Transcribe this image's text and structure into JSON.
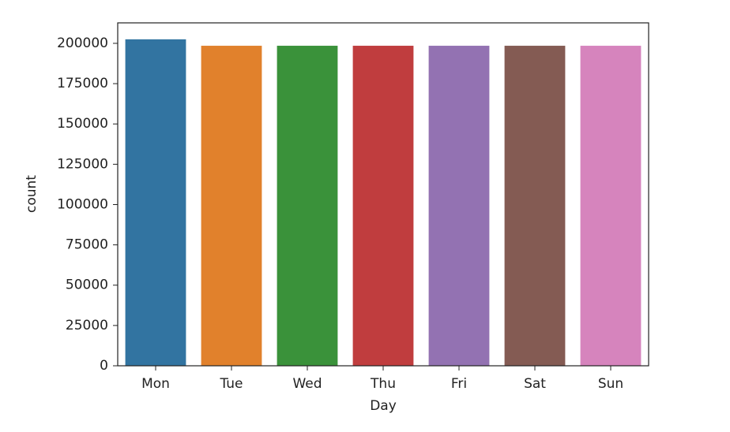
{
  "chart_data": {
    "type": "bar",
    "x_label": "Day",
    "y_label": "count",
    "categories": [
      "Mon",
      "Tue",
      "Wed",
      "Thu",
      "Fri",
      "Sat",
      "Sun"
    ],
    "values": [
      202500,
      198500,
      198500,
      198500,
      198500,
      198500,
      198500
    ],
    "colors": [
      "#3274a1",
      "#e1812c",
      "#3a923a",
      "#c03d3e",
      "#9372b2",
      "#845b53",
      "#d684bd"
    ],
    "ylim": [
      0,
      212700
    ],
    "yticks": [
      0,
      25000,
      50000,
      75000,
      100000,
      125000,
      150000,
      175000,
      200000
    ],
    "grid": false
  }
}
